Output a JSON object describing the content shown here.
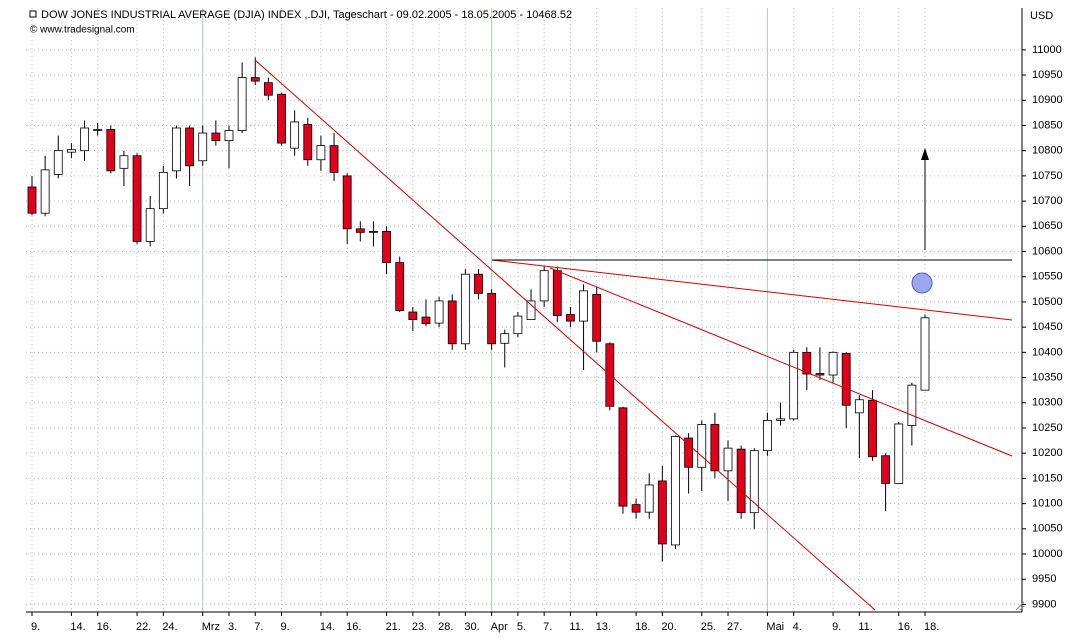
{
  "chart_data": {
    "type": "candlestick",
    "title": "DOW JONES INDUSTRIAL AVERAGE (DJIA) INDEX ,.DJI, Tageschart - 09.02.2005 - 18.05.2005 - 10468.52",
    "source": "© www.tradesignal.com",
    "y_axis_label": "USD",
    "categories": [
      "9.",
      null,
      null,
      "14.",
      null,
      "16.",
      null,
      null,
      "22.",
      null,
      "24.",
      null,
      null,
      "Mrz",
      null,
      "3.",
      null,
      "7.",
      null,
      "9.",
      null,
      null,
      "14.",
      null,
      "16.",
      null,
      null,
      "21.",
      null,
      "23.",
      null,
      "28.",
      null,
      "30.",
      null,
      "Apr",
      null,
      "5.",
      null,
      "7.",
      null,
      "11.",
      null,
      "13.",
      null,
      null,
      "18.",
      null,
      "20.",
      null,
      null,
      "25.",
      null,
      "27.",
      null,
      null,
      "Mai",
      null,
      "4.",
      null,
      null,
      "9.",
      null,
      "11.",
      null,
      null,
      "16.",
      null,
      "18."
    ],
    "open": [
      10728,
      10676,
      10753,
      10797,
      10800,
      10840,
      10842,
      10765,
      10790,
      10620,
      10685,
      10760,
      10845,
      10780,
      10835,
      10820,
      10840,
      10945,
      10935,
      10912,
      10805,
      10852,
      10782,
      10810,
      10750,
      10645,
      10640,
      10640,
      10578,
      10480,
      10470,
      10458,
      10502,
      10417,
      10555,
      10517,
      10418,
      10437,
      10465,
      10502,
      10562,
      10475,
      10462,
      10515,
      10417,
      10290,
      10098,
      10083,
      10145,
      10018,
      10230,
      10172,
      10257,
      10165,
      10208,
      10082,
      10205,
      10265,
      10268,
      10400,
      10358,
      10355,
      10398,
      10280,
      10305,
      10195,
      10140,
      10255,
      10325
    ],
    "high": [
      10750,
      10790,
      10830,
      10815,
      10860,
      10855,
      10850,
      10800,
      10795,
      10710,
      10770,
      10850,
      10850,
      10850,
      10860,
      10850,
      10975,
      10985,
      10945,
      10915,
      10880,
      10865,
      10830,
      10835,
      10755,
      10660,
      10660,
      10650,
      10590,
      10490,
      10505,
      10510,
      10515,
      10565,
      10565,
      10525,
      10445,
      10480,
      10525,
      10572,
      10570,
      10490,
      10535,
      10530,
      10420,
      10292,
      10110,
      10160,
      10175,
      10235,
      10240,
      10265,
      10280,
      10225,
      10215,
      10210,
      10280,
      10300,
      10405,
      10410,
      10410,
      10402,
      10400,
      10315,
      10325,
      10200,
      10262,
      10340,
      10475
    ],
    "low": [
      10672,
      10670,
      10745,
      10785,
      10780,
      10830,
      10755,
      10730,
      10615,
      10610,
      10675,
      10745,
      10730,
      10770,
      10810,
      10765,
      10835,
      10930,
      10900,
      10810,
      10790,
      10770,
      10760,
      10740,
      10615,
      10620,
      10610,
      10555,
      10480,
      10442,
      10452,
      10450,
      10405,
      10405,
      10505,
      10405,
      10370,
      10430,
      10465,
      10490,
      10460,
      10450,
      10365,
      10400,
      10285,
      10080,
      10070,
      10070,
      9985,
      10010,
      10120,
      10125,
      10150,
      10105,
      10070,
      10050,
      10195,
      10255,
      10265,
      10325,
      10345,
      10340,
      10250,
      10190,
      10185,
      10085,
      10140,
      10215,
      10325
    ],
    "close": [
      10676,
      10762,
      10800,
      10802,
      10845,
      10842,
      10760,
      10790,
      10620,
      10685,
      10757,
      10845,
      10770,
      10835,
      10820,
      10840,
      10945,
      10938,
      10910,
      10815,
      10857,
      10782,
      10810,
      10757,
      10645,
      10638,
      10638,
      10578,
      10483,
      10465,
      10457,
      10502,
      10417,
      10555,
      10517,
      10417,
      10437,
      10472,
      10502,
      10562,
      10473,
      10462,
      10522,
      10422,
      10293,
      10095,
      10083,
      10137,
      10020,
      10233,
      10172,
      10257,
      10165,
      10210,
      10082,
      10205,
      10265,
      10268,
      10400,
      10357,
      10355,
      10400,
      10295,
      10306,
      10193,
      10140,
      10258,
      10335,
      10468.52
    ],
    "up_color": "#ffffff",
    "down_color": "#e3001b",
    "ylim": [
      9885,
      11083
    ],
    "yticks": [
      9900,
      9950,
      10000,
      10050,
      10100,
      10150,
      10200,
      10250,
      10300,
      10350,
      10400,
      10450,
      10500,
      10550,
      10600,
      10650,
      10700,
      10750,
      10800,
      10850,
      10900,
      10950,
      11000
    ],
    "grid": true
  }
}
